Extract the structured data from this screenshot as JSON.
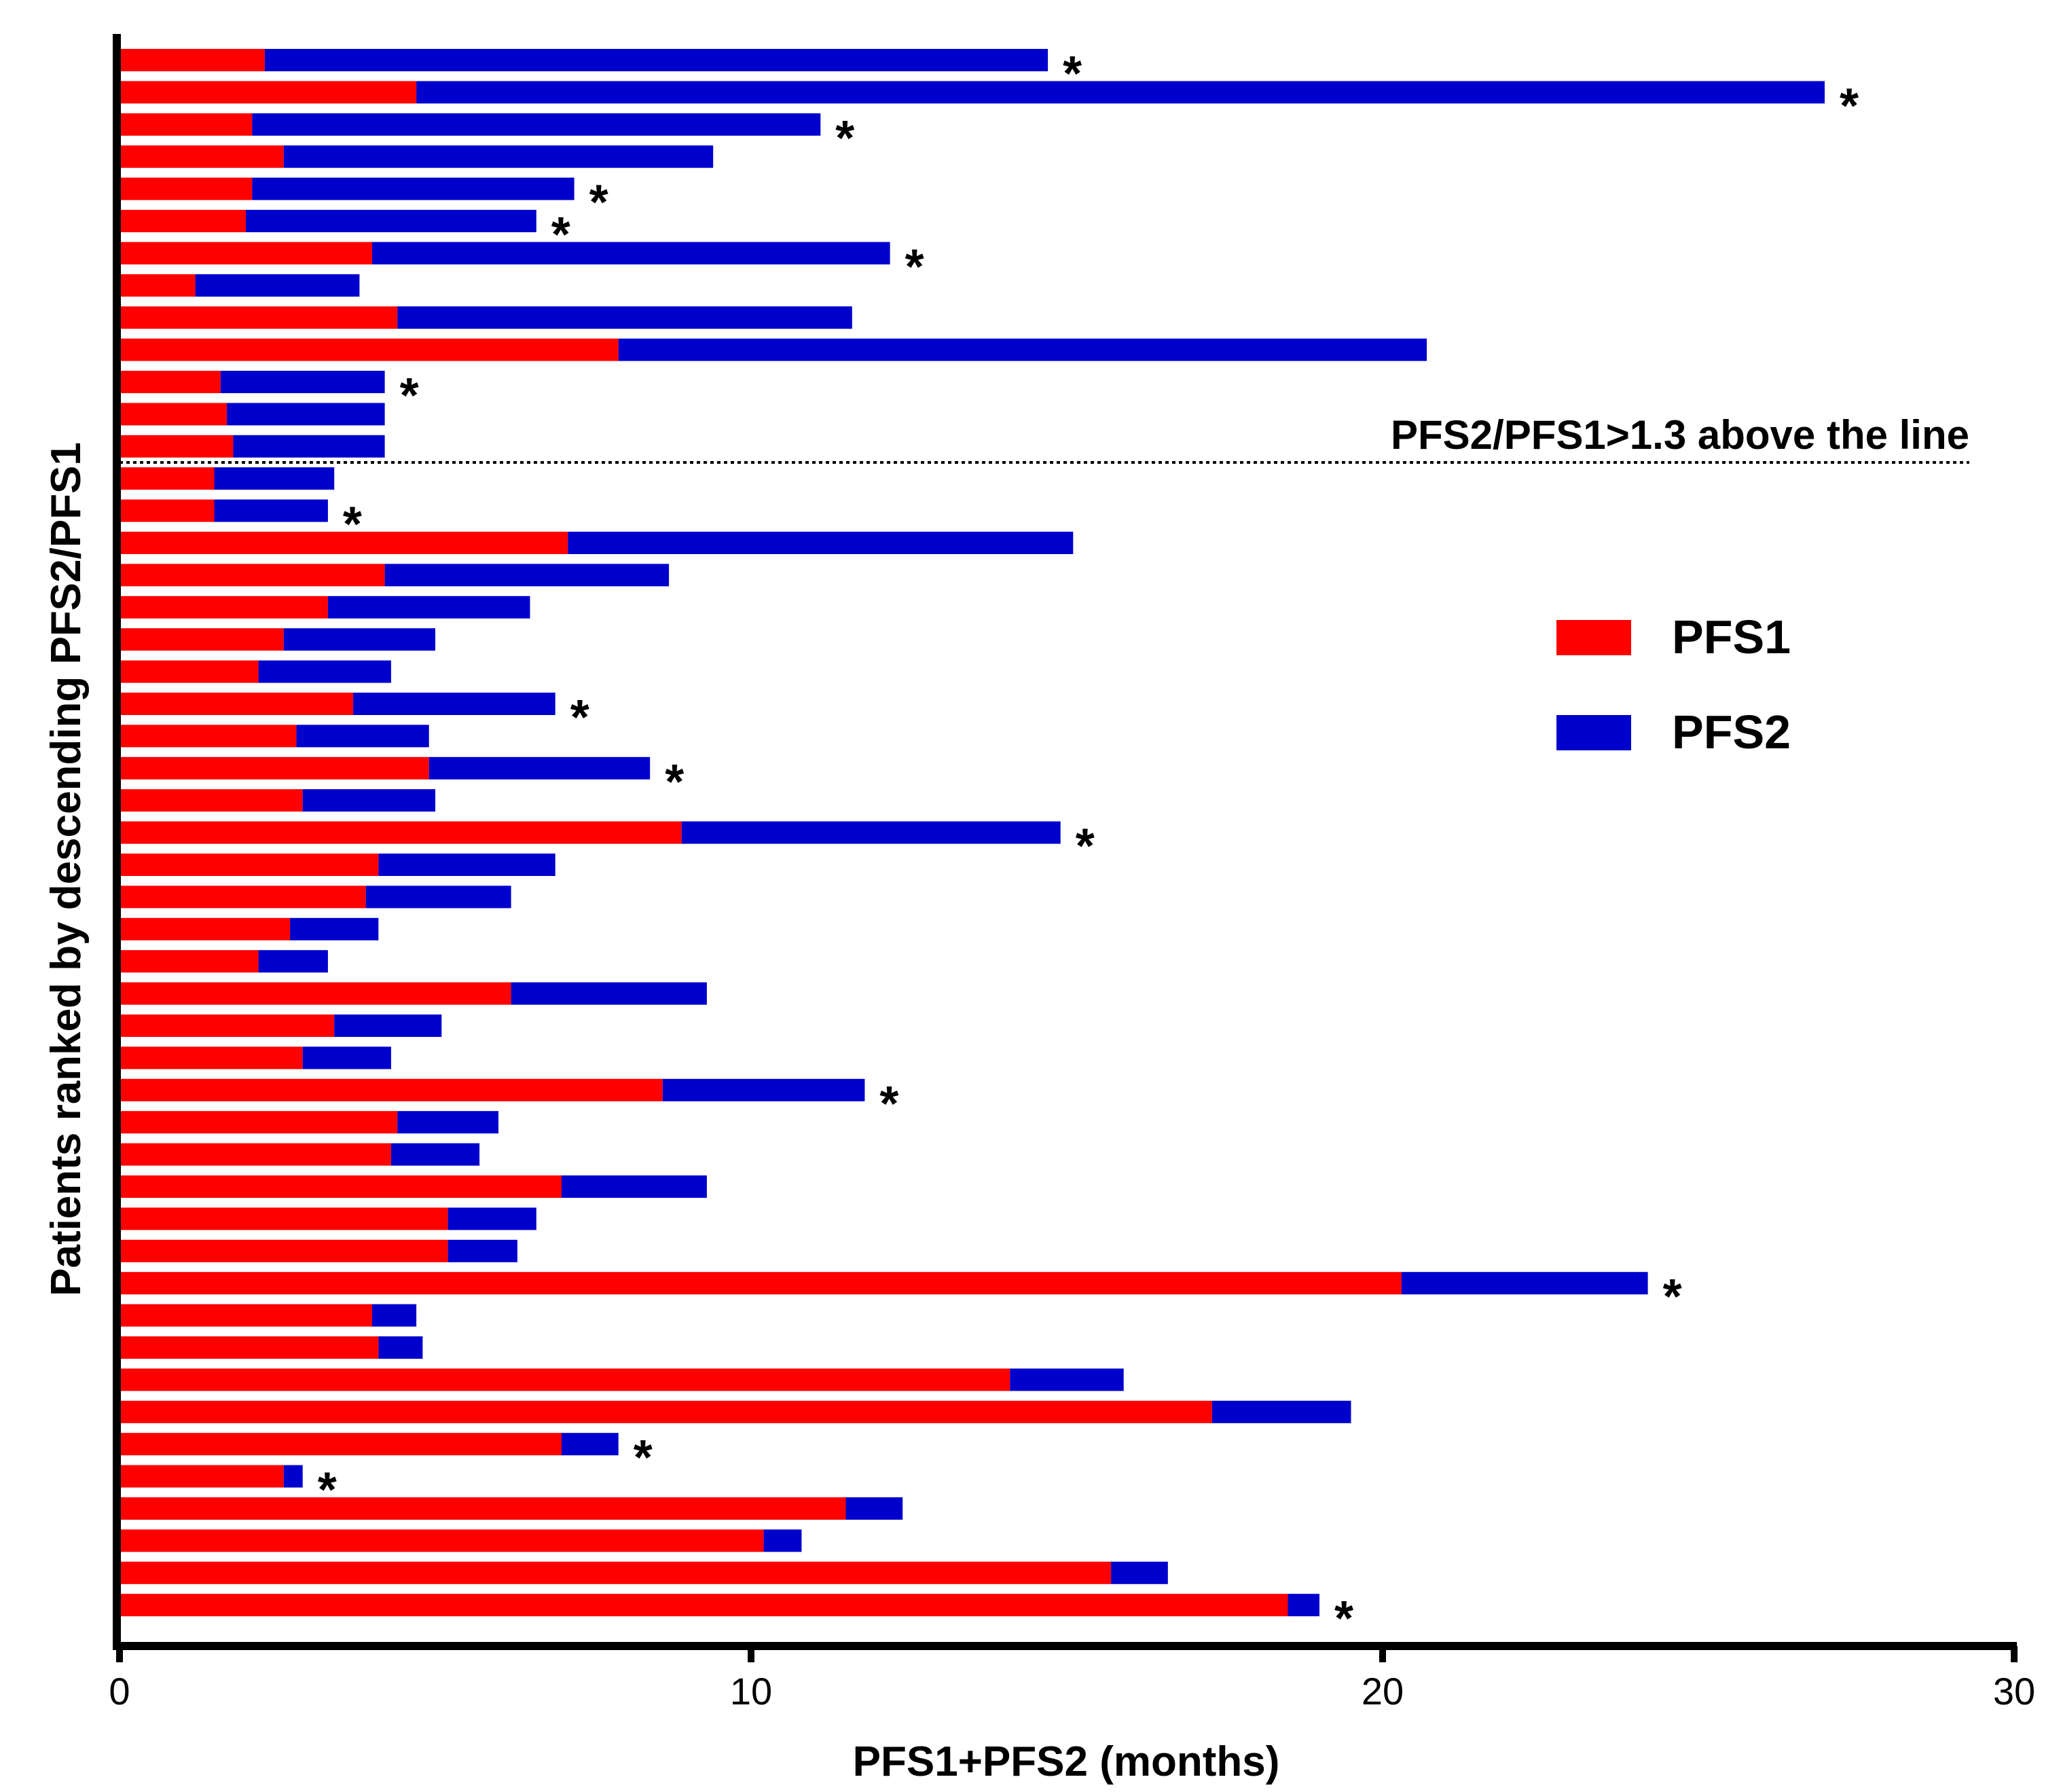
{
  "chart_data": {
    "type": "bar",
    "orientation": "horizontal",
    "stacked": true,
    "xlabel": "PFS1+PFS2 (months)",
    "ylabel": "Patients ranked by descending PFS2/PFS1",
    "xlim": [
      0,
      30
    ],
    "xticks": [
      "0",
      "10",
      "20",
      "30"
    ],
    "legend_position": "right",
    "colors": {
      "PFS1": "#ff0000",
      "PFS2": "#0000cc"
    },
    "series": [
      {
        "name": "PFS1",
        "values": [
          2.3,
          4.7,
          2.1,
          2.6,
          2.1,
          2.0,
          4.0,
          1.2,
          4.4,
          7.9,
          1.6,
          1.7,
          1.8,
          1.5,
          1.5,
          7.1,
          4.2,
          3.3,
          2.6,
          2.2,
          3.7,
          2.8,
          4.9,
          2.9,
          8.9,
          4.1,
          3.9,
          2.7,
          2.2,
          6.2,
          3.4,
          2.9,
          8.6,
          4.4,
          4.3,
          7.0,
          5.2,
          5.2,
          20.3,
          4.0,
          4.1,
          14.1,
          17.3,
          7.0,
          2.6,
          11.5,
          10.2,
          15.7,
          18.5
        ],
        "stars": [
          true,
          true,
          true,
          false,
          true,
          true,
          true,
          false,
          false,
          false,
          true,
          false,
          false,
          false,
          true,
          false,
          false,
          false,
          false,
          false,
          true,
          false,
          true,
          false,
          true,
          false,
          false,
          false,
          false,
          false,
          false,
          false,
          true,
          false,
          false,
          false,
          false,
          false,
          true,
          false,
          false,
          false,
          false,
          true,
          true,
          false,
          false,
          false,
          true
        ]
      },
      {
        "name": "PFS2",
        "values": [
          12.4,
          22.3,
          9.0,
          6.8,
          5.1,
          4.6,
          8.2,
          2.6,
          7.2,
          12.8,
          2.6,
          2.5,
          2.4,
          1.9,
          1.8,
          8.0,
          4.5,
          3.2,
          2.4,
          2.1,
          3.2,
          2.1,
          3.5,
          2.1,
          6.0,
          2.8,
          2.3,
          1.4,
          1.1,
          3.1,
          1.7,
          1.4,
          3.2,
          1.6,
          1.4,
          2.3,
          1.4,
          1.1,
          3.9,
          0.7,
          0.7,
          1.8,
          2.2,
          0.9,
          0.3,
          0.9,
          0.6,
          0.9,
          0.5
        ]
      }
    ],
    "threshold_label": "PFS2/PFS1>1.3 above the line",
    "threshold_after_patient": 13,
    "marker_symbol": "*"
  }
}
